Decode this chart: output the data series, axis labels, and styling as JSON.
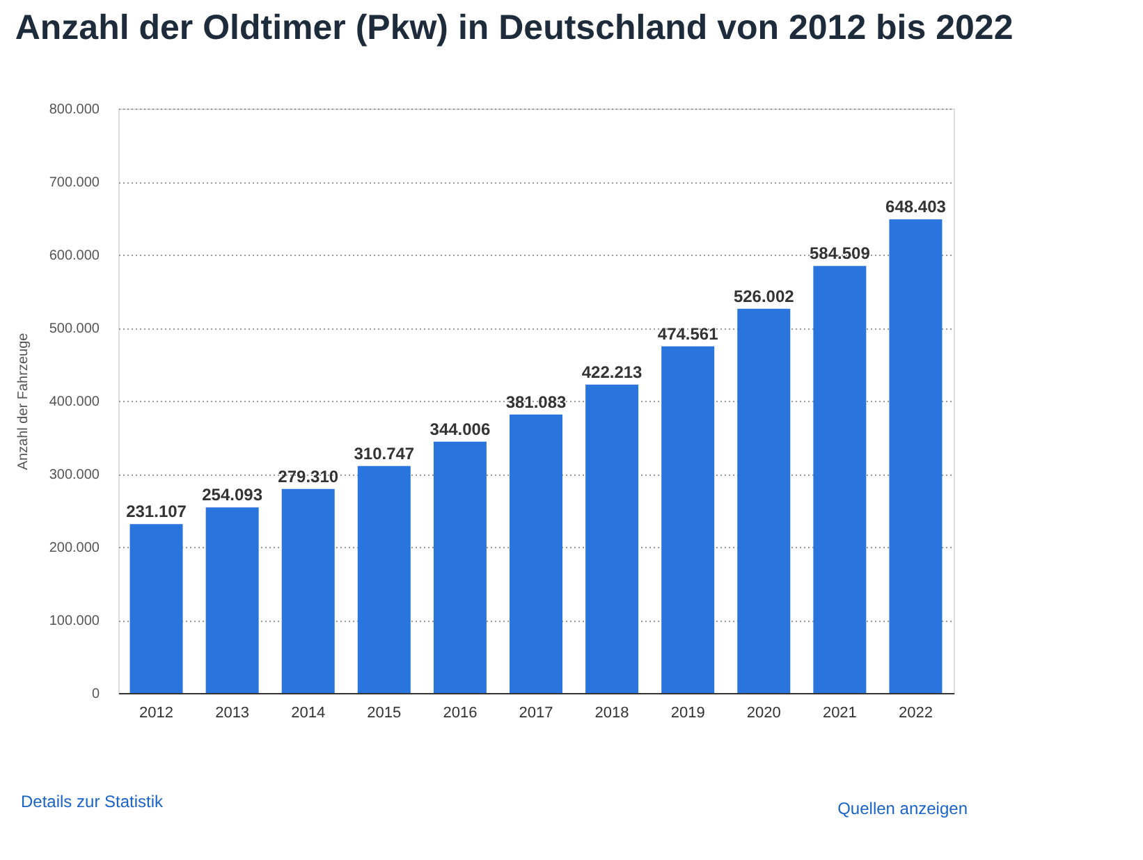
{
  "chart_data": {
    "type": "bar",
    "title": "Anzahl der Oldtimer (Pkw) in Deutschland von 2012 bis 2022",
    "ylabel": "Anzahl der Fahrzeuge",
    "categories": [
      "2012",
      "2013",
      "2014",
      "2015",
      "2016",
      "2017",
      "2018",
      "2019",
      "2020",
      "2021",
      "2022"
    ],
    "values": [
      231107,
      254093,
      279310,
      310747,
      344006,
      381083,
      422213,
      474561,
      526002,
      584509,
      648403
    ],
    "value_labels": [
      "231.107",
      "254.093",
      "279.310",
      "310.747",
      "344.006",
      "381.083",
      "422.213",
      "474.561",
      "526.002",
      "584.509",
      "648.403"
    ],
    "color": "#2a74dd",
    "ylim": [
      0,
      800000
    ],
    "yticks": [
      0,
      {
        "value": 100000,
        "label": "100.000"
      },
      {
        "value": 200000,
        "label": "200.000"
      },
      {
        "value": 300000,
        "label": "300.000"
      },
      {
        "value": 400000,
        "label": "400.000"
      },
      {
        "value": 500000,
        "label": "500.000"
      },
      {
        "value": 600000,
        "label": "600.000"
      },
      {
        "value": 700000,
        "label": "700.000"
      },
      {
        "value": 800000,
        "label": "800.000"
      }
    ],
    "grid": "y",
    "annotations": [
      "Details zur Statistik",
      "Quellen anzeigen"
    ]
  }
}
